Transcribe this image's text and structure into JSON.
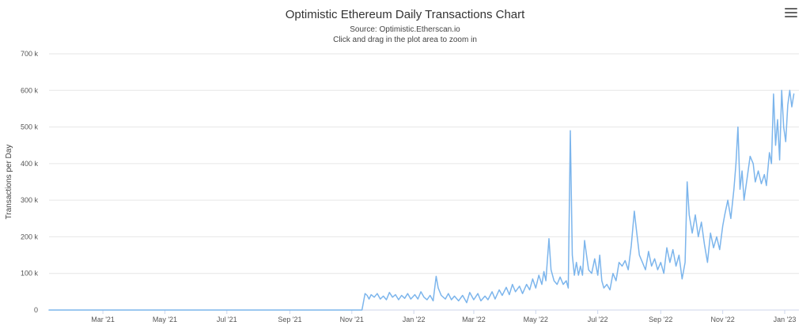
{
  "chart_data": {
    "type": "line",
    "title": "Optimistic Ethereum Daily Transactions Chart",
    "subtitle_lines": [
      "Source: Optimistic.Etherscan.io",
      "Click and drag in the plot area to zoom in"
    ],
    "ylabel": "Transactions per Day",
    "xlabel": "",
    "xlim": [
      "2021-01-07",
      "2023-01-15"
    ],
    "ylim": [
      0,
      700000
    ],
    "y_ticks": [
      {
        "value": 0,
        "label": "0"
      },
      {
        "value": 100000,
        "label": "100 k"
      },
      {
        "value": 200000,
        "label": "200 k"
      },
      {
        "value": 300000,
        "label": "300 k"
      },
      {
        "value": 400000,
        "label": "400 k"
      },
      {
        "value": 500000,
        "label": "500 k"
      },
      {
        "value": 600000,
        "label": "600 k"
      },
      {
        "value": 700000,
        "label": "700 k"
      }
    ],
    "x_ticks": [
      {
        "date": "2021-03-01",
        "label": "Mar '21"
      },
      {
        "date": "2021-05-01",
        "label": "May '21"
      },
      {
        "date": "2021-07-01",
        "label": "Jul '21"
      },
      {
        "date": "2021-09-01",
        "label": "Sep '21"
      },
      {
        "date": "2021-11-01",
        "label": "Nov '21"
      },
      {
        "date": "2022-01-01",
        "label": "Jan '22"
      },
      {
        "date": "2022-03-01",
        "label": "Mar '22"
      },
      {
        "date": "2022-05-01",
        "label": "May '22"
      },
      {
        "date": "2022-07-01",
        "label": "Jul '22"
      },
      {
        "date": "2022-09-01",
        "label": "Sep '22"
      },
      {
        "date": "2022-11-01",
        "label": "Nov '22"
      },
      {
        "date": "2023-01-01",
        "label": "Jan '23"
      }
    ],
    "grid": true,
    "legend": "none",
    "series": [
      {
        "color": "#7cb5ec",
        "points": [
          [
            "2021-01-07",
            0
          ],
          [
            "2021-03-01",
            0
          ],
          [
            "2021-05-01",
            0
          ],
          [
            "2021-07-01",
            0
          ],
          [
            "2021-09-01",
            0
          ],
          [
            "2021-11-11",
            0
          ],
          [
            "2021-11-12",
            15000
          ],
          [
            "2021-11-13",
            30000
          ],
          [
            "2021-11-14",
            45000
          ],
          [
            "2021-11-16",
            40000
          ],
          [
            "2021-11-18",
            30000
          ],
          [
            "2021-11-20",
            42000
          ],
          [
            "2021-11-23",
            35000
          ],
          [
            "2021-11-26",
            45000
          ],
          [
            "2021-11-29",
            30000
          ],
          [
            "2021-12-02",
            38000
          ],
          [
            "2021-12-05",
            28000
          ],
          [
            "2021-12-08",
            48000
          ],
          [
            "2021-12-11",
            35000
          ],
          [
            "2021-12-14",
            42000
          ],
          [
            "2021-12-17",
            28000
          ],
          [
            "2021-12-20",
            40000
          ],
          [
            "2021-12-23",
            32000
          ],
          [
            "2021-12-26",
            45000
          ],
          [
            "2021-12-29",
            30000
          ],
          [
            "2022-01-02",
            42000
          ],
          [
            "2022-01-05",
            30000
          ],
          [
            "2022-01-08",
            50000
          ],
          [
            "2022-01-11",
            35000
          ],
          [
            "2022-01-14",
            28000
          ],
          [
            "2022-01-17",
            40000
          ],
          [
            "2022-01-20",
            25000
          ],
          [
            "2022-01-23",
            92000
          ],
          [
            "2022-01-25",
            60000
          ],
          [
            "2022-01-28",
            40000
          ],
          [
            "2022-02-01",
            30000
          ],
          [
            "2022-02-04",
            45000
          ],
          [
            "2022-02-07",
            28000
          ],
          [
            "2022-02-10",
            38000
          ],
          [
            "2022-02-14",
            25000
          ],
          [
            "2022-02-18",
            40000
          ],
          [
            "2022-02-22",
            20000
          ],
          [
            "2022-02-25",
            48000
          ],
          [
            "2022-03-01",
            28000
          ],
          [
            "2022-03-05",
            45000
          ],
          [
            "2022-03-08",
            25000
          ],
          [
            "2022-03-12",
            38000
          ],
          [
            "2022-03-15",
            28000
          ],
          [
            "2022-03-19",
            50000
          ],
          [
            "2022-03-22",
            30000
          ],
          [
            "2022-03-26",
            55000
          ],
          [
            "2022-03-29",
            40000
          ],
          [
            "2022-04-02",
            62000
          ],
          [
            "2022-04-05",
            42000
          ],
          [
            "2022-04-08",
            70000
          ],
          [
            "2022-04-11",
            50000
          ],
          [
            "2022-04-15",
            65000
          ],
          [
            "2022-04-18",
            45000
          ],
          [
            "2022-04-22",
            70000
          ],
          [
            "2022-04-25",
            55000
          ],
          [
            "2022-04-28",
            85000
          ],
          [
            "2022-05-01",
            60000
          ],
          [
            "2022-05-04",
            95000
          ],
          [
            "2022-05-07",
            70000
          ],
          [
            "2022-05-09",
            105000
          ],
          [
            "2022-05-11",
            80000
          ],
          [
            "2022-05-14",
            195000
          ],
          [
            "2022-05-16",
            110000
          ],
          [
            "2022-05-19",
            80000
          ],
          [
            "2022-05-22",
            70000
          ],
          [
            "2022-05-25",
            90000
          ],
          [
            "2022-05-28",
            70000
          ],
          [
            "2022-05-31",
            80000
          ],
          [
            "2022-06-02",
            60000
          ],
          [
            "2022-06-04",
            490000
          ],
          [
            "2022-06-06",
            150000
          ],
          [
            "2022-06-08",
            95000
          ],
          [
            "2022-06-10",
            130000
          ],
          [
            "2022-06-12",
            95000
          ],
          [
            "2022-06-14",
            120000
          ],
          [
            "2022-06-16",
            95000
          ],
          [
            "2022-06-18",
            190000
          ],
          [
            "2022-06-20",
            150000
          ],
          [
            "2022-06-22",
            110000
          ],
          [
            "2022-06-25",
            100000
          ],
          [
            "2022-06-28",
            140000
          ],
          [
            "2022-07-01",
            95000
          ],
          [
            "2022-07-03",
            150000
          ],
          [
            "2022-07-05",
            80000
          ],
          [
            "2022-07-07",
            60000
          ],
          [
            "2022-07-10",
            70000
          ],
          [
            "2022-07-13",
            55000
          ],
          [
            "2022-07-16",
            100000
          ],
          [
            "2022-07-19",
            80000
          ],
          [
            "2022-07-22",
            130000
          ],
          [
            "2022-07-25",
            120000
          ],
          [
            "2022-07-28",
            135000
          ],
          [
            "2022-07-31",
            110000
          ],
          [
            "2022-08-03",
            175000
          ],
          [
            "2022-08-06",
            270000
          ],
          [
            "2022-08-08",
            220000
          ],
          [
            "2022-08-11",
            150000
          ],
          [
            "2022-08-14",
            130000
          ],
          [
            "2022-08-17",
            110000
          ],
          [
            "2022-08-20",
            160000
          ],
          [
            "2022-08-23",
            120000
          ],
          [
            "2022-08-26",
            140000
          ],
          [
            "2022-08-29",
            110000
          ],
          [
            "2022-09-01",
            130000
          ],
          [
            "2022-09-04",
            100000
          ],
          [
            "2022-09-07",
            170000
          ],
          [
            "2022-09-10",
            130000
          ],
          [
            "2022-09-13",
            165000
          ],
          [
            "2022-09-16",
            120000
          ],
          [
            "2022-09-19",
            150000
          ],
          [
            "2022-09-22",
            85000
          ],
          [
            "2022-09-25",
            130000
          ],
          [
            "2022-09-27",
            350000
          ],
          [
            "2022-09-29",
            260000
          ],
          [
            "2022-10-02",
            210000
          ],
          [
            "2022-10-05",
            260000
          ],
          [
            "2022-10-08",
            200000
          ],
          [
            "2022-10-11",
            240000
          ],
          [
            "2022-10-14",
            180000
          ],
          [
            "2022-10-17",
            130000
          ],
          [
            "2022-10-20",
            210000
          ],
          [
            "2022-10-23",
            170000
          ],
          [
            "2022-10-26",
            200000
          ],
          [
            "2022-10-29",
            165000
          ],
          [
            "2022-11-01",
            230000
          ],
          [
            "2022-11-03",
            260000
          ],
          [
            "2022-11-06",
            300000
          ],
          [
            "2022-11-09",
            250000
          ],
          [
            "2022-11-12",
            330000
          ],
          [
            "2022-11-14",
            400000
          ],
          [
            "2022-11-16",
            500000
          ],
          [
            "2022-11-18",
            330000
          ],
          [
            "2022-11-20",
            380000
          ],
          [
            "2022-11-22",
            300000
          ],
          [
            "2022-11-25",
            360000
          ],
          [
            "2022-11-28",
            420000
          ],
          [
            "2022-12-01",
            400000
          ],
          [
            "2022-12-03",
            350000
          ],
          [
            "2022-12-06",
            380000
          ],
          [
            "2022-12-09",
            345000
          ],
          [
            "2022-12-12",
            370000
          ],
          [
            "2022-12-14",
            340000
          ],
          [
            "2022-12-17",
            430000
          ],
          [
            "2022-12-19",
            400000
          ],
          [
            "2022-12-21",
            590000
          ],
          [
            "2022-12-23",
            450000
          ],
          [
            "2022-12-25",
            520000
          ],
          [
            "2022-12-27",
            410000
          ],
          [
            "2022-12-29",
            600000
          ],
          [
            "2022-12-31",
            500000
          ],
          [
            "2023-01-02",
            460000
          ],
          [
            "2023-01-04",
            560000
          ],
          [
            "2023-01-06",
            600000
          ],
          [
            "2023-01-08",
            555000
          ],
          [
            "2023-01-10",
            590000
          ]
        ]
      }
    ]
  },
  "toolbar": {
    "menu_icon": "hamburger-menu-icon"
  }
}
